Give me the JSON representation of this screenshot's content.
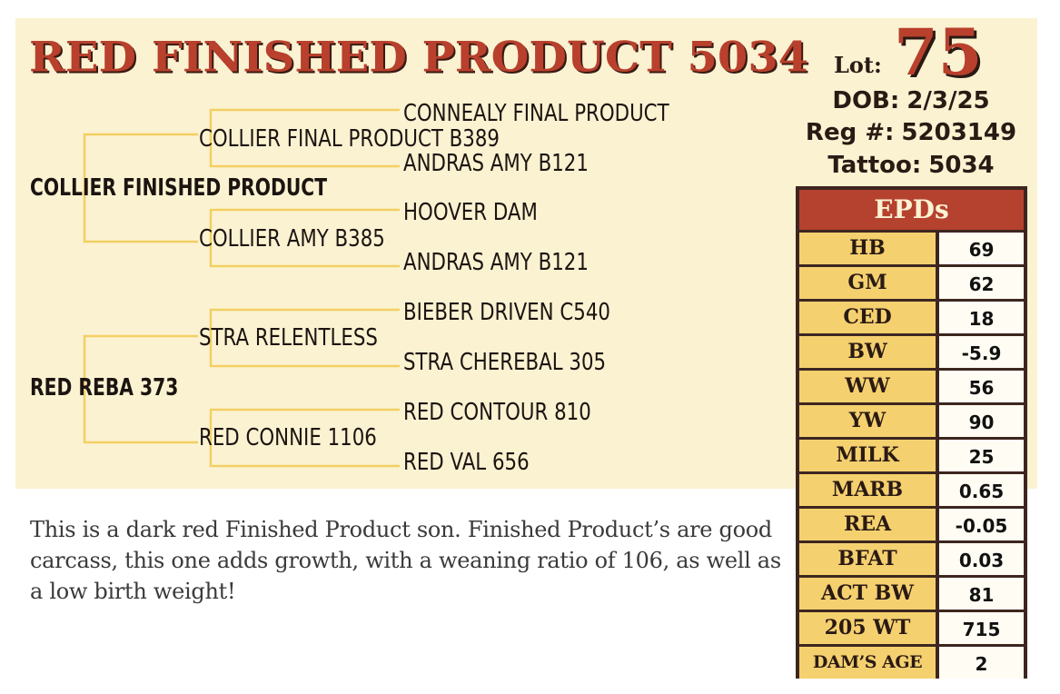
{
  "title": "RED FINISHED PRODUCT 5034",
  "lot": {
    "label": "Lot:",
    "number": "75"
  },
  "dob": {
    "label": "DOB:",
    "value": "2/3/25"
  },
  "reg": {
    "label": "Reg #:",
    "value": "5203149"
  },
  "tattoo": {
    "label": "Tattoo:",
    "value": "5034"
  },
  "pedigree": {
    "sire": "COLLIER FINISHED PRODUCT",
    "dam": "RED REBA 373",
    "sire_sire": "COLLIER FINAL PRODUCT B389",
    "sire_dam": "COLLIER AMY B385",
    "dam_sire": "STRA RELENTLESS",
    "dam_dam": "RED CONNIE 1106",
    "ggp": [
      "CONNEALY FINAL PRODUCT",
      "ANDRAS AMY B121",
      "HOOVER DAM",
      "ANDRAS AMY B121",
      "BIEBER DRIVEN C540",
      "STRA CHEREBAL 305",
      "RED CONTOUR 810",
      "RED VAL 656"
    ]
  },
  "description": "This is a dark red Finished Product son. Finished Product’s are good carcass, this one adds growth, with a weaning ratio of 106, as well as a low birth weight!",
  "epd": {
    "header": "EPDs",
    "rows": [
      {
        "label": "HB",
        "value": "69"
      },
      {
        "label": "GM",
        "value": "62"
      },
      {
        "label": "CED",
        "value": "18"
      },
      {
        "label": "BW",
        "value": "-5.9"
      },
      {
        "label": "WW",
        "value": "56"
      },
      {
        "label": "YW",
        "value": "90"
      },
      {
        "label": "MILK",
        "value": "25"
      },
      {
        "label": "MARB",
        "value": "0.65"
      },
      {
        "label": "REA",
        "value": "-0.05"
      },
      {
        "label": "BFAT",
        "value": "0.03"
      },
      {
        "label": "ACT BW",
        "value": "81"
      },
      {
        "label": "205 WT",
        "value": "715"
      },
      {
        "label": "DAM’S AGE",
        "value": "2"
      }
    ]
  },
  "colors": {
    "panel": "#fbf2d2",
    "title": "#b8402c",
    "connector": "#f3cf63",
    "epd_header": "#b5412f",
    "epd_label": "#f5d06f",
    "epd_border": "#3d2620"
  }
}
